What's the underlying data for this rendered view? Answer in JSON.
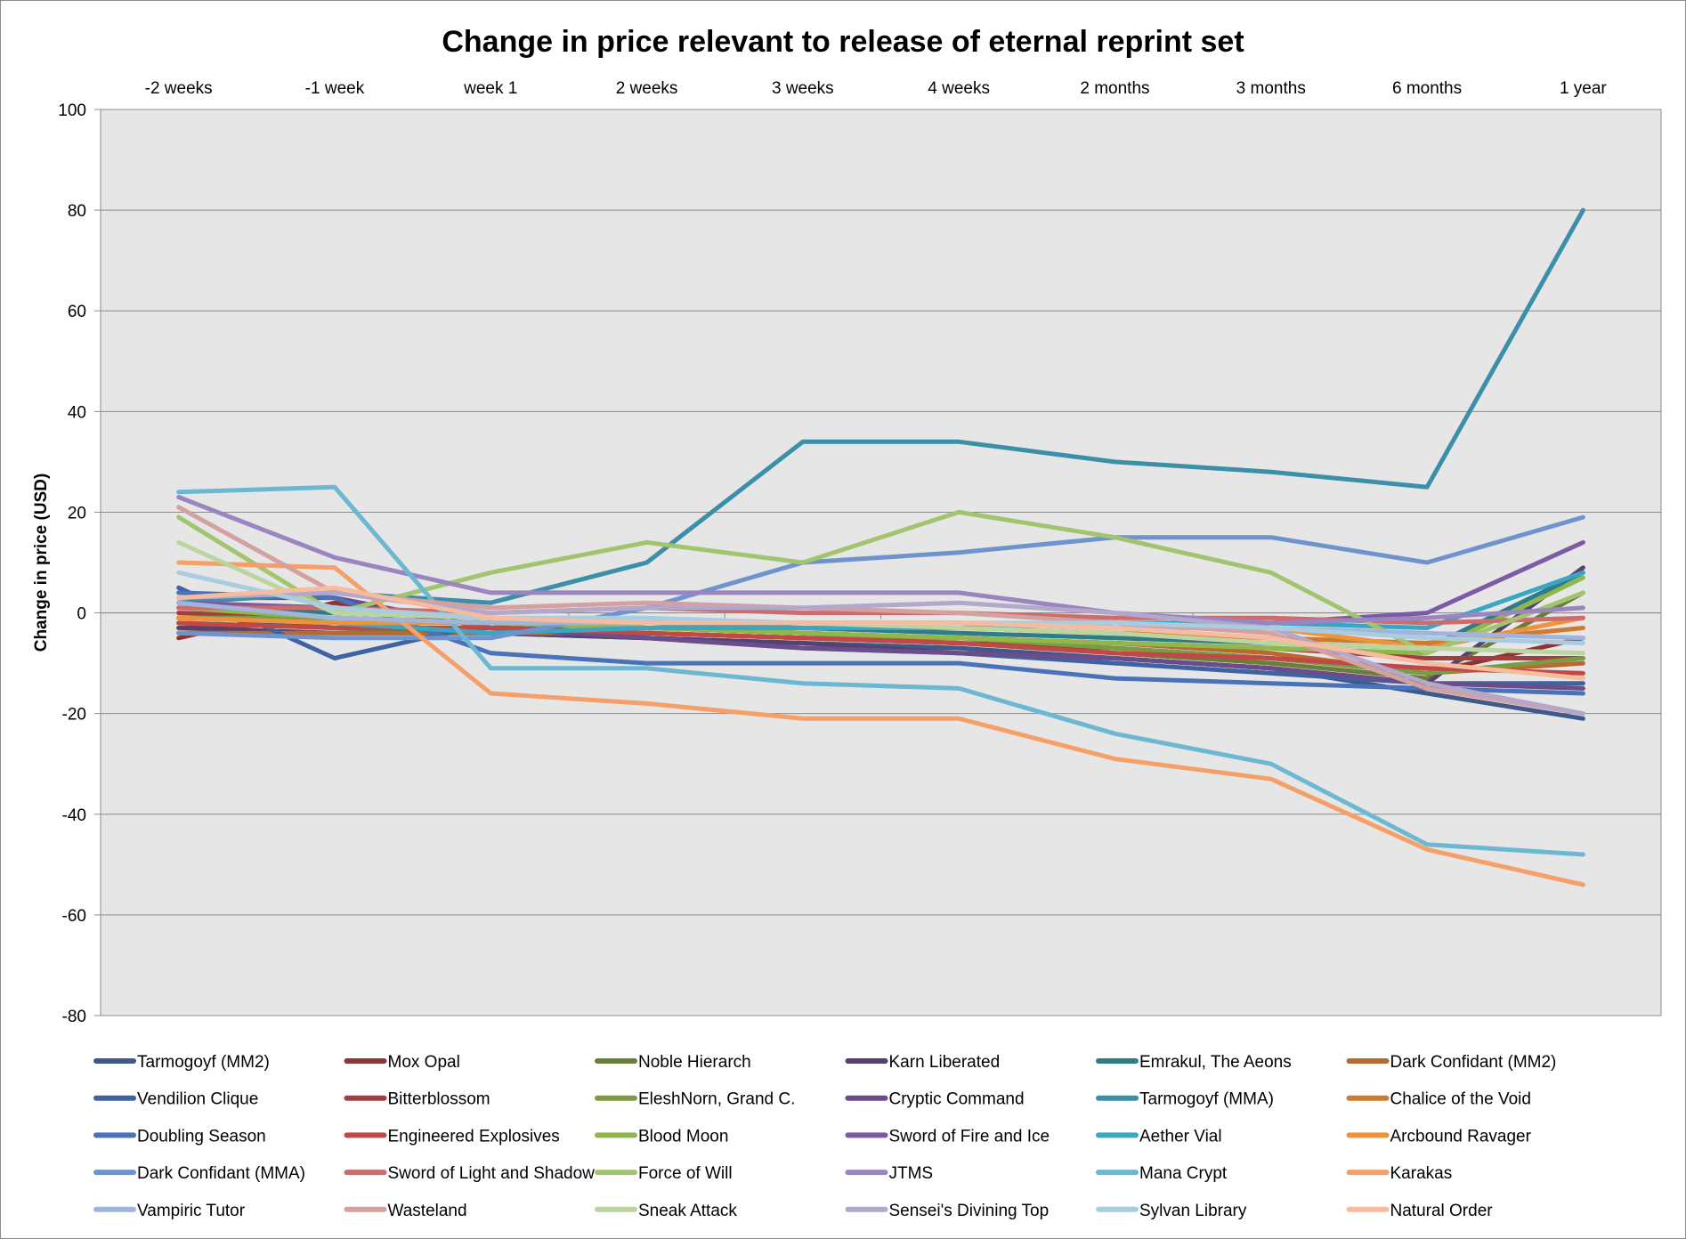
{
  "chart_data": {
    "type": "line",
    "title": "Change in price relevant to release of eternal reprint set",
    "ylabel": "Change in price (USD)",
    "xlabel": "",
    "ylim": [
      -80,
      100
    ],
    "yticks": [
      100,
      80,
      60,
      40,
      20,
      0,
      -20,
      -40,
      -60,
      -80
    ],
    "categories": [
      "-2 weeks",
      "-1 week",
      "week 1",
      "2 weeks",
      "3 weeks",
      "4 weeks",
      "2 months",
      "3 months",
      "6 months",
      "1 year"
    ],
    "grid": true,
    "legend_position": "bottom",
    "series": [
      {
        "name": "Tarmogoyf (MM2)",
        "color": "#3d5a8a",
        "values": [
          -3,
          -2,
          -4,
          -5,
          -6,
          -7,
          -9,
          -11,
          -16,
          -21
        ]
      },
      {
        "name": "Mox Opal",
        "color": "#8e3434",
        "values": [
          -5,
          2,
          -3,
          -4,
          -5,
          -6,
          -7,
          -9,
          -12,
          -5
        ]
      },
      {
        "name": "Noble Hierarch",
        "color": "#6b7d3a",
        "values": [
          -2,
          -3,
          -4,
          -4,
          -5,
          -6,
          -8,
          -10,
          -13,
          4
        ]
      },
      {
        "name": "Karn Liberated",
        "color": "#57426f",
        "values": [
          -3,
          -4,
          -4,
          -5,
          -6,
          -8,
          -9,
          -11,
          -14,
          9
        ]
      },
      {
        "name": "Emrakul, The Aeons",
        "color": "#2e7d86",
        "values": [
          1,
          0,
          -1,
          -2,
          -3,
          -4,
          -5,
          -6,
          -7,
          8
        ]
      },
      {
        "name": "Dark Confidant (MM2)",
        "color": "#b8692e",
        "values": [
          -4,
          -4,
          -4,
          -4,
          -5,
          -5,
          -6,
          -8,
          -12,
          -10
        ]
      },
      {
        "name": "Vendilion Clique",
        "color": "#3f62a3",
        "values": [
          5,
          -9,
          -2,
          -5,
          -7,
          -8,
          -10,
          -12,
          -14,
          -14
        ]
      },
      {
        "name": "Bitterblossom",
        "color": "#a43e3e",
        "values": [
          0,
          -1,
          -2,
          -3,
          -4,
          -5,
          -6,
          -7,
          -9,
          -9
        ]
      },
      {
        "name": "EleshNorn, Grand C.",
        "color": "#7d9b45",
        "values": [
          -1,
          -1,
          -2,
          -3,
          -4,
          -5,
          -7,
          -9,
          -12,
          -9
        ]
      },
      {
        "name": "Cryptic Command",
        "color": "#6a4d8a",
        "values": [
          3,
          3,
          -3,
          -5,
          -7,
          -8,
          -9,
          -11,
          -14,
          -15
        ]
      },
      {
        "name": "Tarmogoyf (MMA)",
        "color": "#3b8fa8",
        "values": [
          2,
          4,
          2,
          10,
          34,
          34,
          30,
          28,
          25,
          80
        ]
      },
      {
        "name": "Chalice of the Void",
        "color": "#d07a30",
        "values": [
          -1,
          -2,
          -2,
          -3,
          -3,
          -3,
          -4,
          -5,
          -6,
          -3
        ]
      },
      {
        "name": "Doubling Season",
        "color": "#4a72b8",
        "values": [
          4,
          3,
          -8,
          -10,
          -10,
          -10,
          -13,
          -14,
          -15,
          -16
        ]
      },
      {
        "name": "Engineered Explosives",
        "color": "#c24848",
        "values": [
          -2,
          -3,
          -3,
          -4,
          -5,
          -6,
          -8,
          -9,
          -11,
          -12
        ]
      },
      {
        "name": "Blood Moon",
        "color": "#8fb84a",
        "values": [
          1,
          -1,
          -2,
          -3,
          -4,
          -5,
          -6,
          -7,
          -8,
          7
        ]
      },
      {
        "name": "Sword of Fire and Ice",
        "color": "#7d5aa6",
        "values": [
          2,
          1,
          -1,
          -2,
          -2,
          -2,
          -3,
          -2,
          0,
          14
        ]
      },
      {
        "name": "Aether Vial",
        "color": "#3aa6c4",
        "values": [
          -1,
          -2,
          -4,
          -3,
          -3,
          -3,
          -2,
          -2,
          -3,
          8
        ]
      },
      {
        "name": "Arcbound Ravager",
        "color": "#f0923a",
        "values": [
          -1,
          -2,
          -2,
          -2,
          -2,
          -2,
          -3,
          -3,
          -7,
          -1
        ]
      },
      {
        "name": "Dark Confidant (MMA)",
        "color": "#6f93cc",
        "values": [
          -4,
          -5,
          -5,
          1,
          10,
          12,
          15,
          15,
          10,
          19
        ]
      },
      {
        "name": "Sword of Light and Shadow",
        "color": "#cc6c6c",
        "values": [
          1,
          1,
          0,
          1,
          0,
          0,
          -1,
          -1,
          -2,
          -1
        ]
      },
      {
        "name": "Force of Will",
        "color": "#a3c46f",
        "values": [
          19,
          0,
          8,
          14,
          10,
          20,
          15,
          8,
          -8,
          4
        ]
      },
      {
        "name": "JTMS",
        "color": "#9a85c0",
        "values": [
          23,
          11,
          4,
          4,
          4,
          4,
          0,
          -2,
          -1,
          1
        ]
      },
      {
        "name": "Mana Crypt",
        "color": "#6cb8d2",
        "values": [
          24,
          25,
          -11,
          -11,
          -14,
          -15,
          -24,
          -30,
          -46,
          -48
        ]
      },
      {
        "name": "Karakas",
        "color": "#f5a068",
        "values": [
          10,
          9,
          -16,
          -18,
          -21,
          -21,
          -29,
          -33,
          -47,
          -54
        ]
      },
      {
        "name": "Vampiric Tutor",
        "color": "#a3b4dc",
        "values": [
          2,
          -1,
          -2,
          -2,
          -2,
          -2,
          -3,
          -3,
          -4,
          -5
        ]
      },
      {
        "name": "Wasteland",
        "color": "#d4a0a0",
        "values": [
          21,
          4,
          1,
          2,
          1,
          0,
          -2,
          -4,
          -15,
          -20
        ]
      },
      {
        "name": "Sneak Attack",
        "color": "#bcd49e",
        "values": [
          14,
          0,
          -1,
          -2,
          -2,
          -3,
          -4,
          -6,
          -7,
          -8
        ]
      },
      {
        "name": "Sensei's Divining Top",
        "color": "#b3a8cc",
        "values": [
          3,
          4,
          0,
          1,
          1,
          2,
          0,
          -3,
          -14,
          -20
        ]
      },
      {
        "name": "Sylvan Library",
        "color": "#a8cce0",
        "values": [
          8,
          1,
          -1,
          -1,
          -2,
          -2,
          -2,
          -3,
          -5,
          -6
        ]
      },
      {
        "name": "Natural Order",
        "color": "#f7bca0",
        "values": [
          3,
          5,
          -1,
          -2,
          -2,
          -2,
          -3,
          -5,
          -10,
          -13
        ]
      }
    ]
  }
}
